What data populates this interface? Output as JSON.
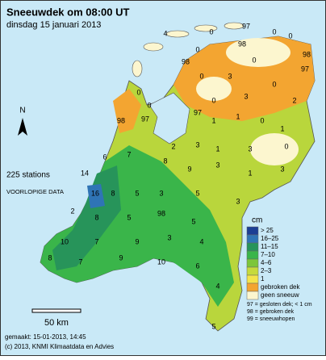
{
  "header": {
    "title": "Sneeuwdek om 08:00 UT",
    "subtitle": "dinsdag 15 januari 2013"
  },
  "info": {
    "stations": "225 stations",
    "status": "VOORLOPIGE DATA"
  },
  "north": "N",
  "scale": "50 km",
  "legend": {
    "unit": "cm",
    "items": [
      {
        "label": "> 25",
        "color": "#1c3f94"
      },
      {
        "label": "16–25",
        "color": "#2f74b5"
      },
      {
        "label": "11–15",
        "color": "#27945a"
      },
      {
        "label": "7–10",
        "color": "#3ab54a"
      },
      {
        "label": "4–6",
        "color": "#7cc63a"
      },
      {
        "label": "2–3",
        "color": "#c6da3c"
      },
      {
        "label": "1",
        "color": "#f4e44a"
      },
      {
        "label": "gebroken dek",
        "color": "#f3a531"
      },
      {
        "label": "geen sneeuw",
        "color": "#fcf6cf"
      }
    ],
    "notes": [
      "97 = gesloten dek; < 1 cm",
      "98 = gebroken dek",
      "99 = sneeuwhopen"
    ]
  },
  "stations": [
    4,
    0,
    97,
    0,
    0,
    0,
    98,
    98,
    98,
    0,
    97,
    3,
    0,
    0,
    0,
    0,
    3,
    0,
    2,
    98,
    97,
    2,
    97,
    1,
    1,
    0,
    1,
    8,
    3,
    1,
    3,
    0,
    6,
    7,
    9,
    3,
    1,
    3,
    14,
    16,
    8,
    5,
    3,
    5,
    3,
    2,
    8,
    5,
    98,
    5,
    10,
    7,
    9,
    3,
    4,
    8,
    7,
    9,
    10,
    6,
    4,
    5
  ],
  "footer": {
    "made": "gemaakt: 15-01-2013, 14:45",
    "copyright": "(c) 2013, KNMI Klimaatdata en Advies"
  }
}
